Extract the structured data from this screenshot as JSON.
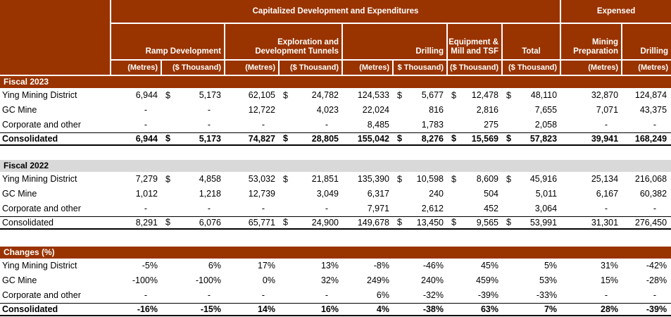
{
  "table": {
    "title_capitalized": "Capitalized Development and Expenditures",
    "title_expensed": "Expensed",
    "groups": {
      "ramp": "Ramp Development",
      "tunnels": "Exploration and\nDevelopment Tunnels",
      "drilling": "Drilling",
      "equipment": "Equipment &\nMill and TSF",
      "total": "Total",
      "mining_prep": "Mining\nPreparation",
      "drilling_expensed": "Drilling"
    },
    "units": [
      "(Metres)",
      "($ Thousand)",
      "(Metres)",
      "($ Thousand)",
      "(Metres)",
      "$ Thousand)",
      "($ Thousand)",
      "($ Thousand)",
      "(Metres)",
      "(Metres)"
    ],
    "currency_column_indices": [
      1,
      3,
      5,
      6,
      7
    ],
    "colors": {
      "header_brown": "#993300",
      "section_gray": "#d9d9d9",
      "text": "#000000",
      "gridline": "#ffffff"
    },
    "sections": [
      {
        "id": "fiscal-2023",
        "label": "Fiscal 2023",
        "style": "brown",
        "rows": [
          {
            "label": "Ying Mining District",
            "dollar": true,
            "values": [
              "6,944",
              "5,173",
              "62,105",
              "24,782",
              "124,533",
              "5,677",
              "12,478",
              "48,110",
              "32,870",
              "124,874"
            ]
          },
          {
            "label": "GC Mine",
            "values": [
              "-",
              "-",
              "12,722",
              "4,023",
              "22,024",
              "816",
              "2,816",
              "7,655",
              "7,071",
              "43,375"
            ]
          },
          {
            "label": "Corporate and other",
            "values": [
              "-",
              "-",
              "-",
              "-",
              "8,485",
              "1,783",
              "275",
              "2,058",
              "-",
              "-"
            ]
          },
          {
            "label": "Consolidated",
            "dollar": true,
            "total": true,
            "bold": true,
            "values": [
              "6,944",
              "5,173",
              "74,827",
              "28,805",
              "155,042",
              "8,276",
              "15,569",
              "57,823",
              "39,941",
              "168,249"
            ]
          }
        ]
      },
      {
        "id": "fiscal-2022",
        "label": "Fiscal 2022",
        "style": "gray",
        "rows": [
          {
            "label": "Ying Mining District",
            "dollar": true,
            "values": [
              "7,279",
              "4,858",
              "53,032",
              "21,851",
              "135,390",
              "10,598",
              "8,609",
              "45,916",
              "25,134",
              "216,068"
            ]
          },
          {
            "label": "GC Mine",
            "values": [
              "1,012",
              "1,218",
              "12,739",
              "3,049",
              "6,317",
              "240",
              "504",
              "5,011",
              "6,167",
              "60,382"
            ]
          },
          {
            "label": "Corporate and other",
            "values": [
              "-",
              "-",
              "-",
              "-",
              "7,971",
              "2,612",
              "452",
              "3,064",
              "-",
              "-"
            ]
          },
          {
            "label": "Consolidated",
            "dollar": true,
            "total": true,
            "values": [
              "8,291",
              "6,076",
              "65,771",
              "24,900",
              "149,678",
              "13,450",
              "9,565",
              "53,991",
              "31,301",
              "276,450"
            ]
          }
        ]
      },
      {
        "id": "changes-percent",
        "label": "Changes (%)",
        "style": "brown",
        "rows": [
          {
            "label": "Ying Mining District",
            "values": [
              "-5%",
              "6%",
              "17%",
              "13%",
              "-8%",
              "-46%",
              "45%",
              "5%",
              "31%",
              "-42%"
            ]
          },
          {
            "label": "GC Mine",
            "values": [
              "-100%",
              "-100%",
              "0%",
              "32%",
              "249%",
              "240%",
              "459%",
              "53%",
              "15%",
              "-28%"
            ]
          },
          {
            "label": "Corporate and other",
            "values": [
              "-",
              "-",
              "-",
              "-",
              "6%",
              "-32%",
              "-39%",
              "-33%",
              "-",
              "-"
            ]
          },
          {
            "label": "Consolidated",
            "total": true,
            "bold": true,
            "values": [
              "-16%",
              "-15%",
              "14%",
              "16%",
              "4%",
              "-38%",
              "63%",
              "7%",
              "28%",
              "-39%"
            ]
          }
        ]
      }
    ]
  }
}
